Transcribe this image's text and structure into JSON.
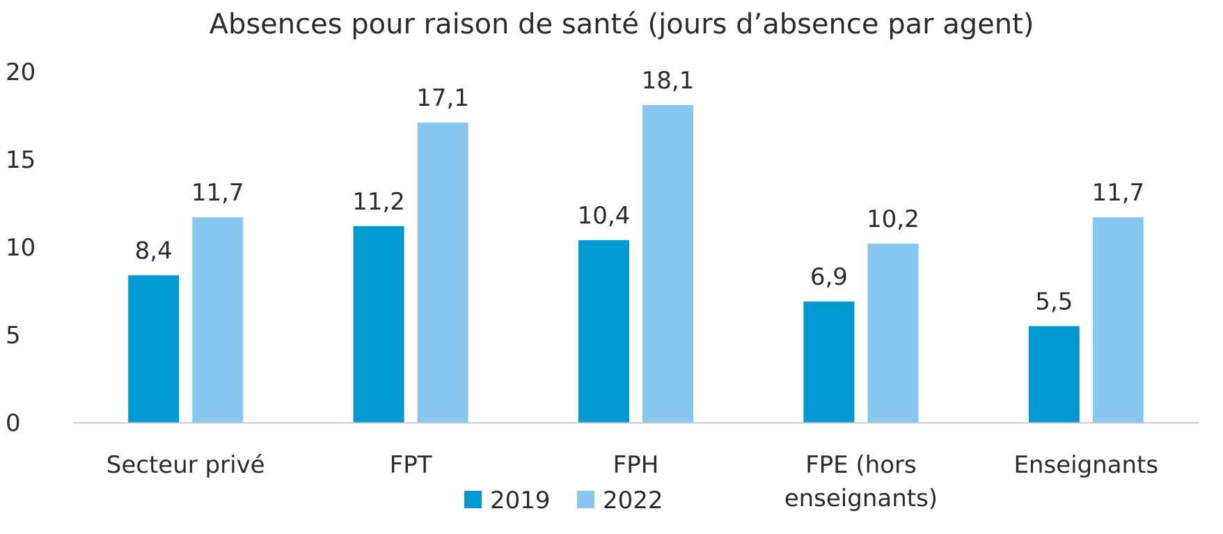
{
  "chart_data": {
    "type": "bar",
    "title": "Absences pour raison de santé (jours d’absence par agent)",
    "categories": [
      [
        "Secteur privé"
      ],
      [
        "FPT"
      ],
      [
        "FPH"
      ],
      [
        "FPE (hors",
        "enseignants)"
      ],
      [
        "Enseignants"
      ]
    ],
    "series": [
      {
        "name": "2019",
        "color": "#0099d1",
        "values": [
          8.4,
          11.2,
          10.4,
          6.9,
          5.5
        ],
        "labels": [
          "8,4",
          "11,2",
          "10,4",
          "6,9",
          "5,5"
        ]
      },
      {
        "name": "2022",
        "color": "#88c8f0",
        "values": [
          11.7,
          17.1,
          18.1,
          10.2,
          11.7
        ],
        "labels": [
          "11,7",
          "17,1",
          "18,1",
          "10,2",
          "11,7"
        ]
      }
    ],
    "ylim": [
      0,
      20
    ],
    "yticks": [
      "0",
      "5",
      "10",
      "15",
      "20"
    ],
    "grid": false,
    "legend_position": "bottom",
    "axis_color": "#c9c9d9"
  }
}
